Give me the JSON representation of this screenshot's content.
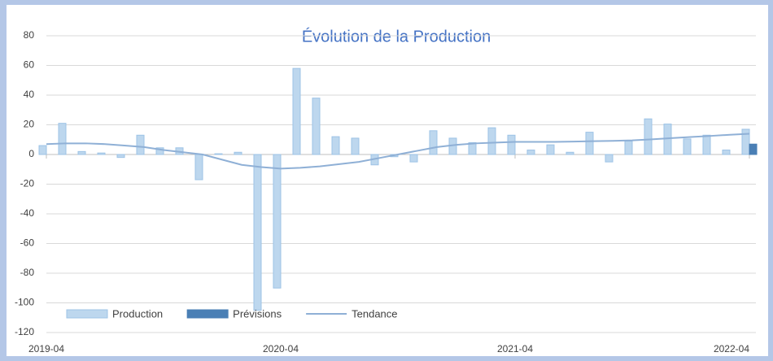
{
  "chart_data": {
    "type": "bar",
    "title": "Évolution de la Production",
    "x": [
      "2019-04",
      "2019-05",
      "2019-06",
      "2019-07",
      "2019-08",
      "2019-09",
      "2019-10",
      "2019-11",
      "2019-12",
      "2020-01",
      "2020-02",
      "2020-03",
      "2020-04",
      "2020-05",
      "2020-06",
      "2020-07",
      "2020-08",
      "2020-09",
      "2020-10",
      "2020-11",
      "2020-12",
      "2021-01",
      "2021-02",
      "2021-03",
      "2021-04",
      "2021-05",
      "2021-06",
      "2021-07",
      "2021-08",
      "2021-09",
      "2021-10",
      "2021-11",
      "2021-12",
      "2022-01",
      "2022-02",
      "2022-03",
      "2022-04"
    ],
    "series": [
      {
        "name": "Production",
        "color": "#bdd7ee",
        "values": [
          6,
          21,
          2,
          1,
          -2,
          13,
          4.5,
          4.5,
          -17,
          0.5,
          1.5,
          -105,
          -90,
          58,
          38,
          12,
          11,
          -7,
          -1.5,
          -5,
          16,
          11,
          8,
          18,
          13,
          3,
          6.5,
          1.5,
          15,
          -5,
          9,
          24,
          20.5,
          10.5,
          13,
          3,
          17
        ]
      },
      {
        "name": "Prévisions",
        "color": "#4a7fb5",
        "values": [
          null,
          null,
          null,
          null,
          null,
          null,
          null,
          null,
          null,
          null,
          null,
          null,
          null,
          null,
          null,
          null,
          null,
          null,
          null,
          null,
          null,
          null,
          null,
          null,
          null,
          null,
          null,
          null,
          null,
          null,
          null,
          null,
          null,
          null,
          null,
          null,
          7
        ]
      },
      {
        "name": "Tendance",
        "type": "line",
        "color": "#8fb0d6",
        "values": [
          7,
          7.5,
          7.5,
          7,
          6,
          5,
          3,
          1.5,
          0,
          -3.5,
          -7,
          -8.5,
          -9.5,
          -9,
          -8,
          -6.5,
          -5,
          -2.5,
          0,
          2.5,
          5,
          6.5,
          7.5,
          8,
          8.5,
          8.5,
          8.5,
          8.7,
          9,
          9.2,
          9.5,
          10.2,
          11,
          11.8,
          12.5,
          13.3,
          14
        ]
      }
    ],
    "xlim": [
      "2019-04",
      "2022-04"
    ],
    "xticks": [
      "2019-04",
      "2020-04",
      "2021-04",
      "2022-04"
    ],
    "ylim": [
      -120,
      80
    ],
    "yticks": [
      -120,
      -100,
      -80,
      -60,
      -40,
      -20,
      0,
      20,
      40,
      60,
      80
    ],
    "grid": true,
    "legend": "lower left"
  }
}
